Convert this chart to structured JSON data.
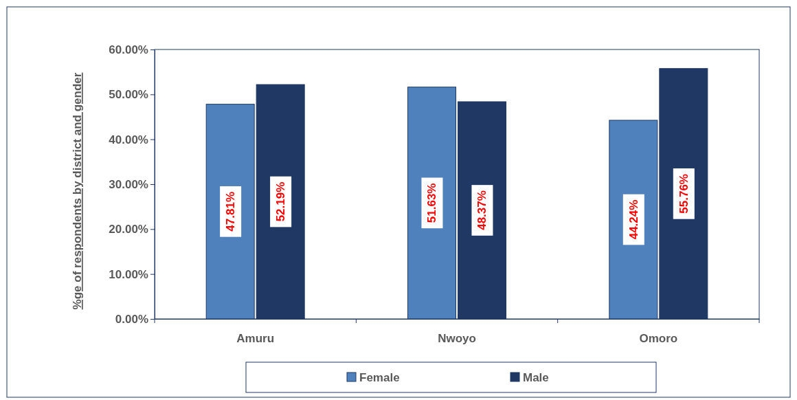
{
  "chart_data": {
    "type": "bar",
    "ylabel": "%ge of respondents by district and gender",
    "categories": [
      "Amuru",
      "Nwoyo",
      "Omoro"
    ],
    "series": [
      {
        "name": "Female",
        "color": "#4f81bd",
        "values": [
          47.81,
          51.63,
          44.24
        ],
        "value_labels": [
          "47.81%",
          "51.63%",
          "44.24%"
        ]
      },
      {
        "name": "Male",
        "color": "#1f3864",
        "values": [
          52.19,
          48.37,
          55.76
        ],
        "value_labels": [
          "52.19%",
          "48.37%",
          "55.76%"
        ]
      }
    ],
    "ylim": [
      0,
      60
    ],
    "yticks": [
      {
        "value": 0,
        "label": "0.00%"
      },
      {
        "value": 10,
        "label": "10.00%"
      },
      {
        "value": 20,
        "label": "20.00%"
      },
      {
        "value": 30,
        "label": "30.00%"
      },
      {
        "value": 40,
        "label": "40.00%"
      },
      {
        "value": 50,
        "label": "50.00%"
      },
      {
        "value": 60,
        "label": "60.00%"
      }
    ],
    "grid": false,
    "legend": "bottom"
  }
}
